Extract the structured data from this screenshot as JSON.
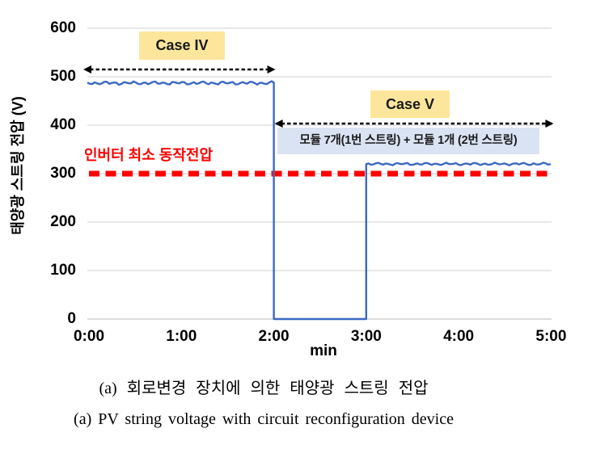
{
  "chart_data": {
    "type": "line",
    "title": "",
    "xlabel": "min",
    "ylabel": "태양광 스트링 전압 (V)",
    "x_ticks": [
      "0:00",
      "1:00",
      "2:00",
      "3:00",
      "4:00",
      "5:00"
    ],
    "x_range_min": [
      0,
      5
    ],
    "y_ticks": [
      0,
      100,
      200,
      300,
      400,
      500,
      600
    ],
    "ylim": [
      0,
      600
    ],
    "grid": "horizontal",
    "gridline_color": "#d9d9d9",
    "series": [
      {
        "name": "PV string voltage",
        "color": "#3c69c3",
        "style": "step-with-noise",
        "segments": [
          {
            "from_min": 0,
            "to_min": 2,
            "voltage": 487,
            "noise_v": 4
          },
          {
            "from_min": 2,
            "to_min": 3,
            "voltage": 0,
            "noise_v": 0
          },
          {
            "from_min": 3,
            "to_min": 5,
            "voltage": 320,
            "noise_v": 3
          }
        ]
      }
    ],
    "threshold": {
      "label": "인버터 최소 동작전압",
      "voltage": 300,
      "color": "#ff0000",
      "style": "dashed"
    },
    "annotations": [
      {
        "label": "Case IV",
        "box_color": "#fce69b",
        "arrow_span_min": [
          0,
          2
        ]
      },
      {
        "label": "Case V",
        "box_color": "#fce69b",
        "arrow_span_min": [
          2,
          5
        ],
        "sublabel": "모듈 7개(1번 스트링) + 모듈 1개 (2번 스트링)",
        "sublabel_bg": "#dae3f3"
      }
    ]
  },
  "captions": {
    "korean": "(a) 회로변경 장치에 의한 태양광 스트링 전압",
    "english": "(a) PV string voltage with circuit reconfiguration device"
  }
}
